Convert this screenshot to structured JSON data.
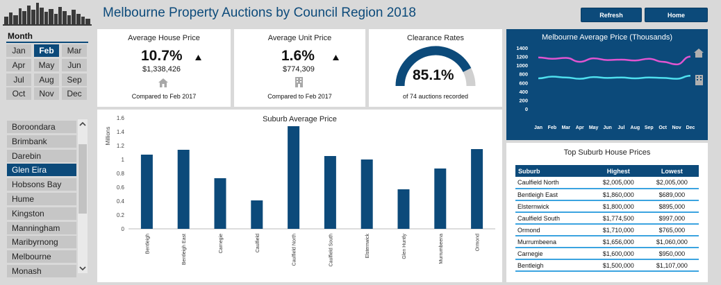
{
  "header": {
    "title": "Melbourne Property Auctions by Council Region 2018",
    "refresh_label": "Refresh",
    "home_label": "Home"
  },
  "month_filter": {
    "label": "Month",
    "months": [
      "Jan",
      "Feb",
      "Mar",
      "Apr",
      "May",
      "Jun",
      "Jul",
      "Aug",
      "Sep",
      "Oct",
      "Nov",
      "Dec"
    ],
    "selected": "Feb"
  },
  "region_filter": {
    "items": [
      "Boroondara",
      "Brimbank",
      "Darebin",
      "Glen Eira",
      "Hobsons Bay",
      "Hume",
      "Kingston",
      "Manningham",
      "Maribyrnong",
      "Melbourne",
      "Monash"
    ],
    "selected": "Glen Eira"
  },
  "kpis": {
    "house": {
      "title": "Average House Price",
      "change": "10.7%",
      "price": "$1,338,426",
      "compare": "Compared to Feb 2017",
      "trend": "up"
    },
    "unit": {
      "title": "Average Unit Price",
      "change": "1.6%",
      "price": "$774,309",
      "compare": "Compared to Feb 2017",
      "trend": "up"
    },
    "clearance": {
      "title": "Clearance Rates",
      "value": "85.1%",
      "caption": "of 74 auctions recorded",
      "rate": 0.851
    }
  },
  "colors": {
    "navy": "#0c4a7a",
    "house_line": "#e055d0",
    "unit_line": "#4fe0ef",
    "gauge_track": "#d0d0d0",
    "table_rule": "#3aa3e0"
  },
  "chart_data": [
    {
      "type": "bar",
      "title": "Suburb Average Price",
      "ylabel": "Millions",
      "ylim": [
        0,
        1.6
      ],
      "yticks": [
        "0",
        "0.2",
        "0.4",
        "0.6",
        "0.8",
        "1",
        "1.2",
        "1.4",
        "1.6"
      ],
      "categories": [
        "Bentleigh",
        "Bentleigh East",
        "Carnegie",
        "Caulfield",
        "Caulfield North",
        "Caulfield South",
        "Elsternwick",
        "Glen Huntly",
        "Murrumbeena",
        "Ormond"
      ],
      "values": [
        1.07,
        1.14,
        0.73,
        0.41,
        1.48,
        1.05,
        1.0,
        0.57,
        0.87,
        1.15
      ]
    },
    {
      "type": "line",
      "title": "Melbourne Average Price (Thousands)",
      "categories": [
        "Jan",
        "Feb",
        "Mar",
        "Apr",
        "May",
        "Jun",
        "Jul",
        "Aug",
        "Sep",
        "Oct",
        "Nov",
        "Dec"
      ],
      "ylim": [
        0,
        1400
      ],
      "yticks": [
        "0",
        "200",
        "400",
        "600",
        "800",
        "1000",
        "1200",
        "1400"
      ],
      "series": [
        {
          "name": "",
          "values": [
            1180,
            1150,
            1170,
            1080,
            1160,
            1120,
            1130,
            1110,
            1150,
            1080,
            1020,
            1200
          ]
        },
        {
          "name": "",
          "values": [
            700,
            740,
            720,
            690,
            730,
            710,
            720,
            700,
            720,
            710,
            690,
            760
          ]
        }
      ]
    }
  ],
  "top_suburbs": {
    "title": "Top Suburb House Prices",
    "headers": [
      "Suburb",
      "Highest",
      "Lowest"
    ],
    "rows": [
      [
        "Caulfield North",
        "$2,005,000",
        "$2,005,000"
      ],
      [
        "Bentleigh East",
        "$1,860,000",
        "$689,000"
      ],
      [
        "Elsternwick",
        "$1,800,000",
        "$895,000"
      ],
      [
        "Caulfield South",
        "$1,774,500",
        "$997,000"
      ],
      [
        "Ormond",
        "$1,710,000",
        "$765,000"
      ],
      [
        "Murrumbeena",
        "$1,656,000",
        "$1,060,000"
      ],
      [
        "Carnegie",
        "$1,600,000",
        "$950,000"
      ],
      [
        "Bentleigh",
        "$1,500,000",
        "$1,107,000"
      ]
    ]
  }
}
